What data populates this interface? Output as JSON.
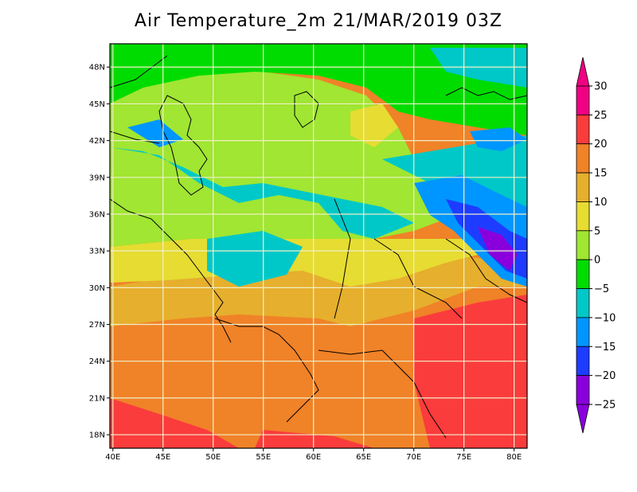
{
  "title": "Air Temperature_2m 21/MAR/2019 03Z",
  "map": {
    "lon_ticks": [
      "40E",
      "45E",
      "50E",
      "55E",
      "60E",
      "65E",
      "70E",
      "75E",
      "80E"
    ],
    "lat_ticks": [
      "48N",
      "45N",
      "42N",
      "39N",
      "36N",
      "33N",
      "30N",
      "27N",
      "24N",
      "21N",
      "18N"
    ],
    "lon_values": [
      40,
      45,
      50,
      55,
      60,
      65,
      70,
      75,
      80
    ],
    "lat_values": [
      48,
      45,
      42,
      39,
      36,
      33,
      30,
      27,
      24,
      21,
      18
    ],
    "lon_range": [
      39.7,
      81.3
    ],
    "lat_range": [
      16.9,
      49.9
    ]
  },
  "colorbar": {
    "labels": [
      "30",
      "25",
      "20",
      "15",
      "10",
      "5",
      "0",
      "−5",
      "−10",
      "−15",
      "−20",
      "−25"
    ],
    "values": [
      30,
      25,
      20,
      15,
      10,
      5,
      0,
      -5,
      -10,
      -15,
      -20,
      -25
    ],
    "colors": [
      "#8a00dc",
      "#1e3cff",
      "#0096ff",
      "#00c8c8",
      "#00dc00",
      "#a0e632",
      "#e6dc32",
      "#e6af2d",
      "#f08228",
      "#fa3c3c",
      "#f00082"
    ]
  }
}
